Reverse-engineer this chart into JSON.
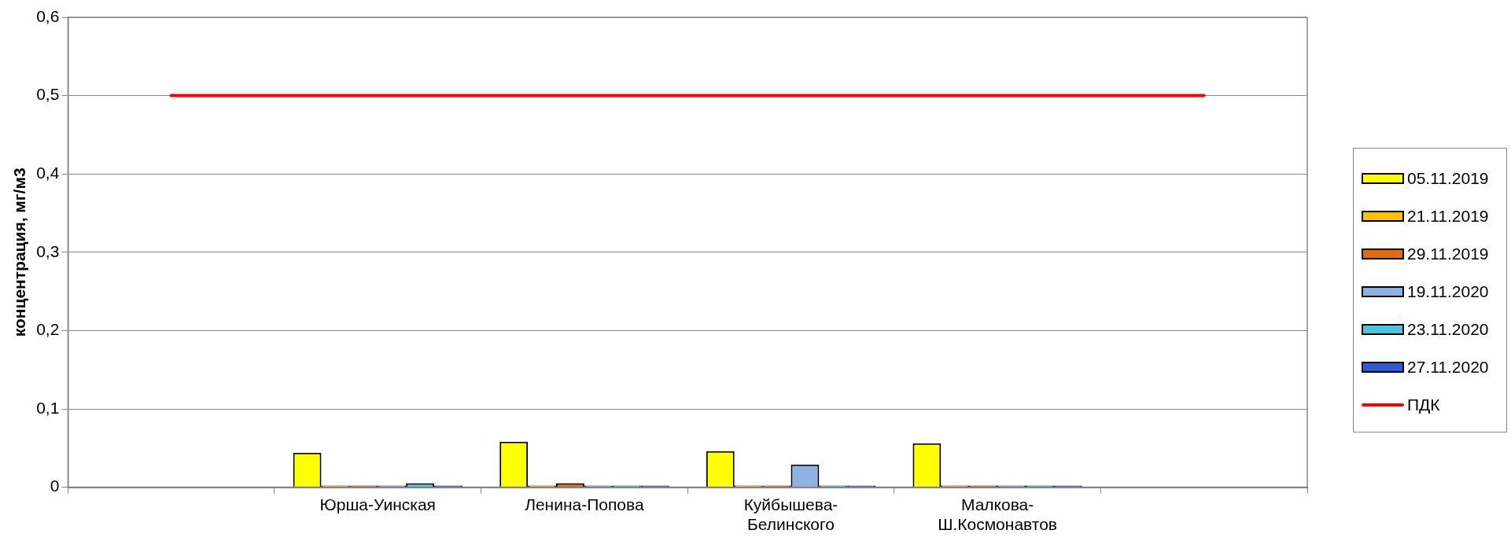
{
  "chart_data": {
    "type": "bar",
    "ylabel": "концентрация, мг/м3",
    "categories": [
      null,
      "Юрша-Уинская",
      "Ленина-Попова",
      "Куйбышева-Белинского",
      "Малкова-Ш.Космонавтов",
      null
    ],
    "series": [
      {
        "name": "05.11.2019",
        "color": "#ffff00",
        "values": [
          null,
          0.044,
          0.058,
          0.046,
          0.056,
          null
        ]
      },
      {
        "name": "21.11.2019",
        "color": "#ffc000",
        "values": [
          null,
          0.002,
          0.002,
          0.002,
          0.002,
          null
        ]
      },
      {
        "name": "29.11.2019",
        "color": "#e36c0a",
        "values": [
          null,
          0.002,
          0.005,
          0.002,
          0.002,
          null
        ]
      },
      {
        "name": "19.11.2020",
        "color": "#8db3e2",
        "values": [
          null,
          0.002,
          0.002,
          0.029,
          0.002,
          null
        ]
      },
      {
        "name": "23.11.2020",
        "color": "#4bc4dc",
        "values": [
          null,
          0.005,
          0.002,
          0.002,
          0.002,
          null
        ]
      },
      {
        "name": "27.11.2020",
        "color": "#3358d6",
        "values": [
          null,
          0.002,
          0.002,
          0.002,
          0.002,
          null
        ]
      },
      {
        "name": "ПДК",
        "type": "line",
        "color": "#ff0000",
        "values": [
          0.5,
          0.5,
          0.5,
          0.5,
          0.5,
          0.5
        ]
      }
    ],
    "ylim": [
      0,
      0.6
    ],
    "yticks": [
      {
        "value": 0,
        "label": "0"
      },
      {
        "value": 0.1,
        "label": "0,1"
      },
      {
        "value": 0.2,
        "label": "0,2"
      },
      {
        "value": 0.3,
        "label": "0,3"
      },
      {
        "value": 0.4,
        "label": "0,4"
      },
      {
        "value": 0.5,
        "label": "0,5"
      },
      {
        "value": 0.6,
        "label": "0,6"
      }
    ],
    "grid": "y",
    "legend": "right",
    "marker": "none"
  }
}
